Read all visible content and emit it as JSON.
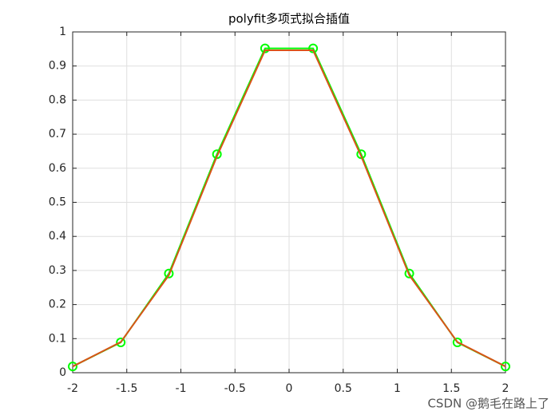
{
  "chart_data": {
    "type": "line",
    "title": "polyfit多项式拟合插值",
    "x": [
      -2,
      -1.5556,
      -1.1111,
      -0.6667,
      -0.2222,
      0.2222,
      0.6667,
      1.1111,
      1.5556,
      2
    ],
    "series": [
      {
        "color": "#00ff00",
        "marker": "o",
        "values": [
          0.0183,
          0.0889,
          0.291,
          0.6412,
          0.9518,
          0.9518,
          0.6412,
          0.291,
          0.0889,
          0.0183
        ]
      },
      {
        "color": "#d95319",
        "marker": "none",
        "values": [
          0.0183,
          0.09,
          0.286,
          0.635,
          0.946,
          0.946,
          0.635,
          0.286,
          0.09,
          0.0183
        ]
      }
    ],
    "xlim": [
      -2,
      2
    ],
    "xticks": [
      -2,
      -1.5,
      -1,
      -0.5,
      0,
      0.5,
      1,
      1.5,
      2
    ],
    "ylim": [
      0,
      1
    ],
    "yticks": [
      0,
      0.1,
      0.2,
      0.3,
      0.4,
      0.5,
      0.6,
      0.7,
      0.8,
      0.9,
      1
    ],
    "grid": true,
    "watermark": "CSDN @鹅毛在路上了"
  }
}
